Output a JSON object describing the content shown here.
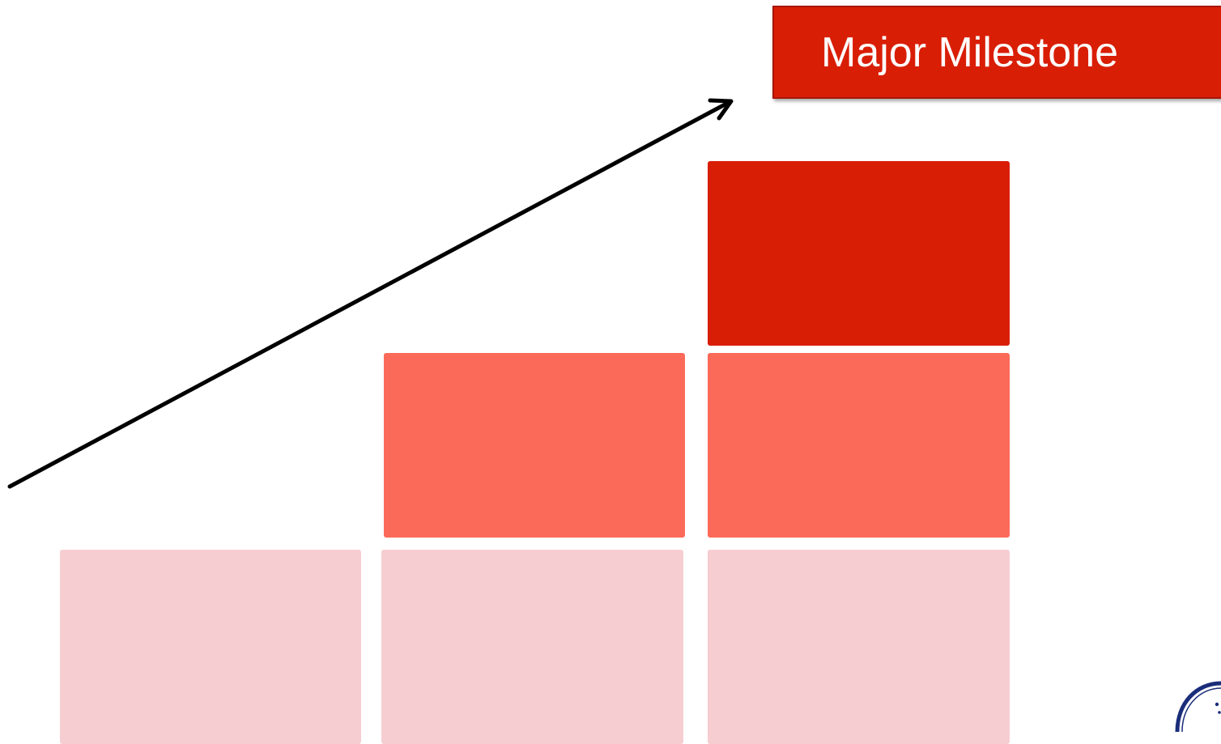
{
  "milestone": {
    "label": "Major Milestone"
  },
  "colors": {
    "low_tier": "#f6cdd1",
    "mid_tier": "#fb6a59",
    "high_tier": "#d91e06",
    "milestone_box": "#d91e06",
    "arrow": "#000000",
    "logo_ring": "#1a2d7a"
  },
  "staircase": {
    "columns": [
      {
        "stack": [
          "low"
        ]
      },
      {
        "stack": [
          "low",
          "mid"
        ]
      },
      {
        "stack": [
          "low",
          "mid",
          "high"
        ]
      }
    ]
  },
  "icons": {
    "arrow": "progress-arrow-icon",
    "logo": "organization-logo-icon"
  }
}
